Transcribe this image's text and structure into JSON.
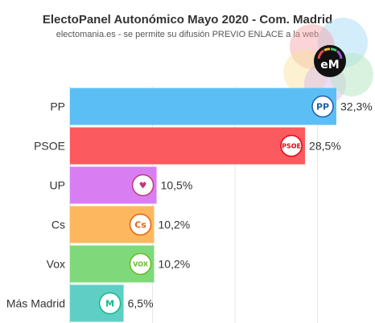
{
  "header": {
    "title": "ElectoPanel Autonómico Mayo 2020 - Com. Madrid",
    "subtitle": "electomania.es - se permite su difusión PREVIO ENLACE a la web",
    "logo_text": "eM"
  },
  "chart_data": {
    "type": "bar",
    "orientation": "horizontal",
    "categories": [
      "PP",
      "PSOE",
      "UP",
      "Cs",
      "Vox",
      "Más Madrid"
    ],
    "values": [
      32.3,
      28.5,
      10.5,
      10.2,
      10.2,
      6.5
    ],
    "value_labels": [
      "32,3%",
      "28,5%",
      "10,5%",
      "10,2%",
      "10,2%",
      "6,5%"
    ],
    "party_logos": [
      "PP",
      "PSOE",
      "♥",
      "Cs",
      "VOX",
      "M"
    ],
    "colors": [
      "#5bbff5",
      "#fb5a5f",
      "#d97ef2",
      "#fdb85f",
      "#7fd97b",
      "#5fcfc5"
    ],
    "logo_colors": [
      "#1f5ea8",
      "#e30613",
      "#c0397a",
      "#eb6109",
      "#63be21",
      "#0fbb8b"
    ],
    "xlim": [
      0,
      35
    ],
    "grid": true
  }
}
